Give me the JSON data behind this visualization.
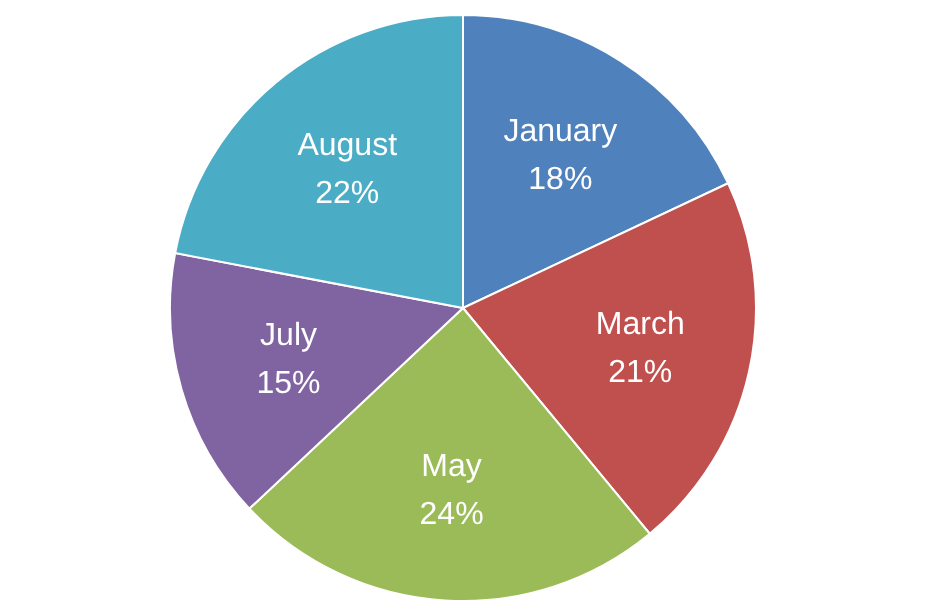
{
  "chart_data": {
    "type": "pie",
    "categories": [
      "January",
      "March",
      "May",
      "July",
      "August"
    ],
    "values": [
      18,
      21,
      24,
      15,
      22
    ],
    "value_labels": [
      "18%",
      "21%",
      "24%",
      "15%",
      "22%"
    ],
    "colors": [
      "#4f81bd",
      "#c0504d",
      "#9bbb59",
      "#8064a2",
      "#4bacc6"
    ],
    "legend": false
  }
}
